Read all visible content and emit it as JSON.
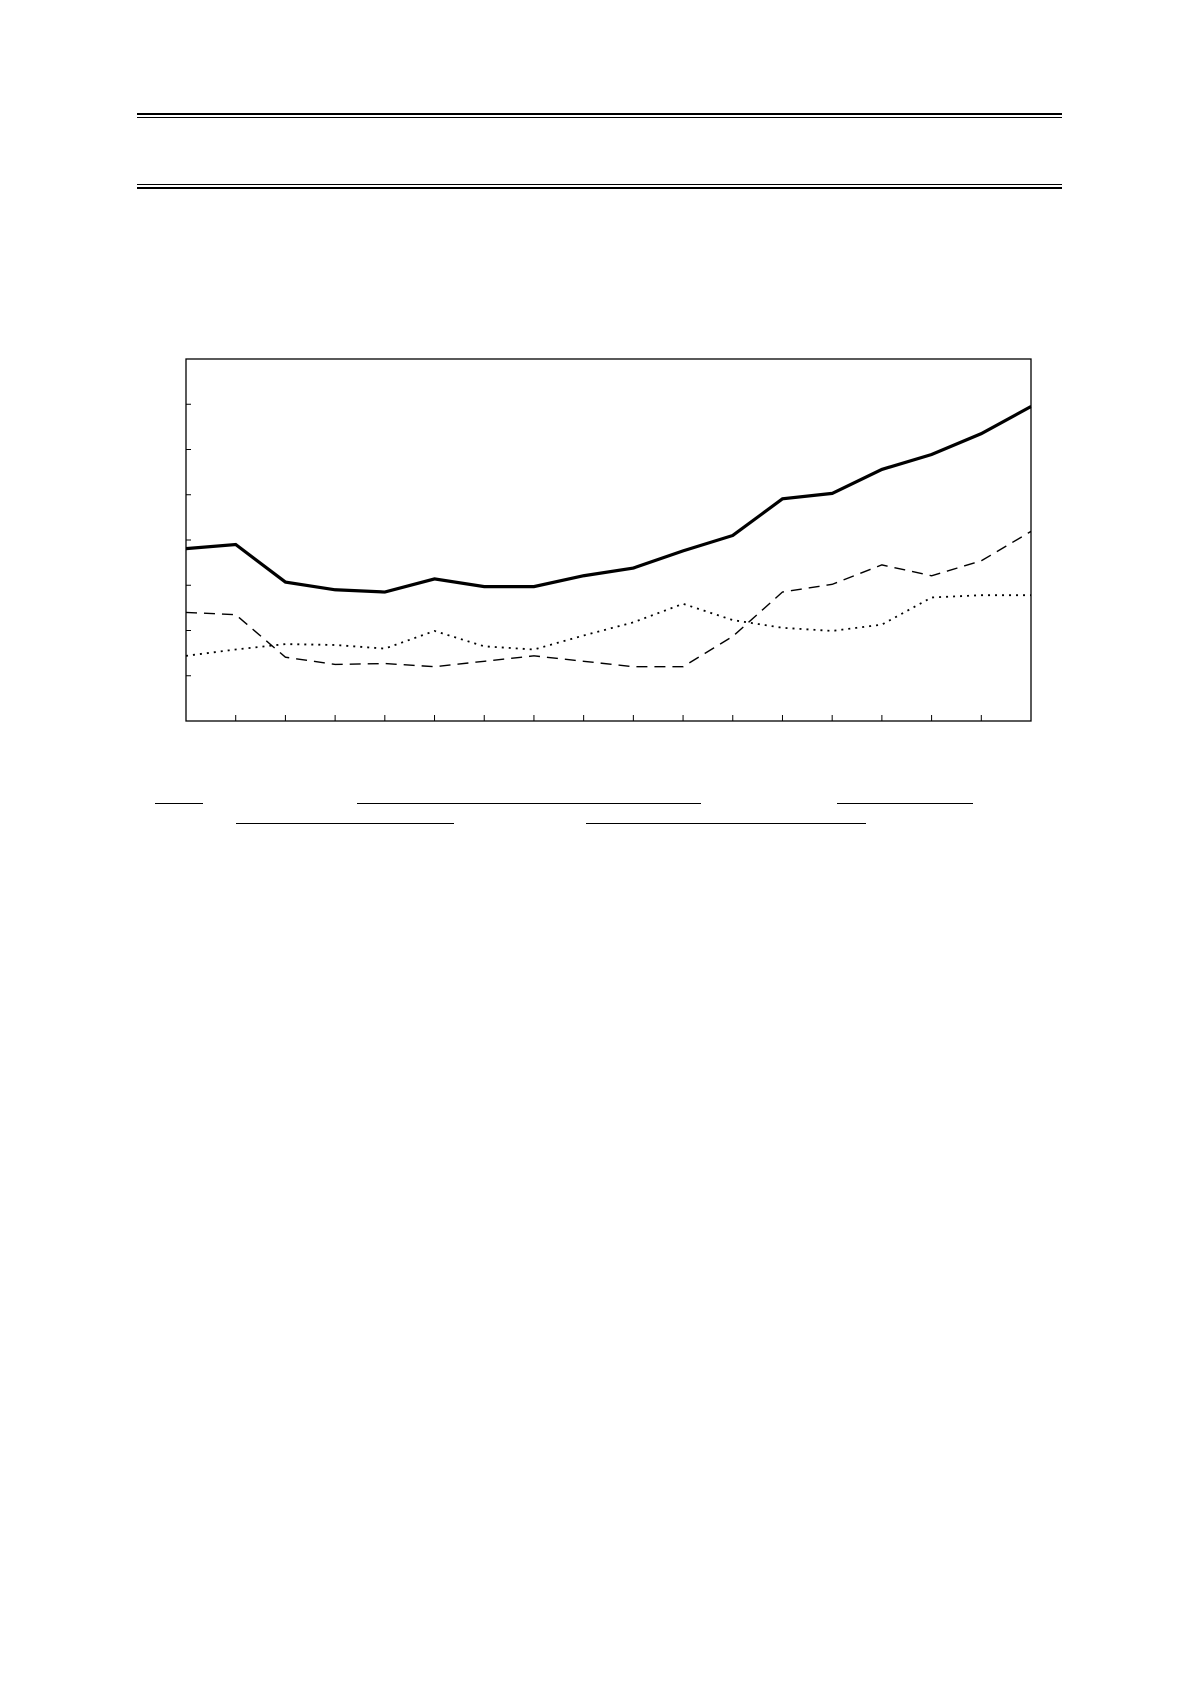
{
  "chart_data": {
    "type": "line",
    "title": "",
    "xlabel": "",
    "ylabel": "",
    "x": [
      1,
      2,
      3,
      4,
      5,
      6,
      7,
      8,
      9,
      10,
      11,
      12,
      13,
      14,
      15,
      16,
      17,
      18
    ],
    "ylim": [
      0,
      8
    ],
    "grid": false,
    "series": [
      {
        "style": "solid-thick",
        "color": "#000000",
        "values": [
          3.81,
          3.9,
          3.07,
          2.9,
          2.85,
          3.14,
          2.97,
          2.97,
          3.21,
          3.38,
          3.76,
          4.1,
          4.91,
          5.03,
          5.56,
          5.89,
          6.35,
          6.95
        ]
      },
      {
        "style": "dashed",
        "color": "#000000",
        "values": [
          2.4,
          2.35,
          1.41,
          1.25,
          1.27,
          1.2,
          1.32,
          1.44,
          1.32,
          1.2,
          1.2,
          1.87,
          2.85,
          3.02,
          3.45,
          3.21,
          3.54,
          4.19
        ]
      },
      {
        "style": "dotted",
        "color": "#000000",
        "values": [
          1.44,
          1.58,
          1.7,
          1.68,
          1.6,
          1.99,
          1.65,
          1.58,
          1.89,
          2.18,
          2.59,
          2.23,
          2.06,
          1.99,
          2.13,
          2.73,
          2.78,
          2.78
        ]
      }
    ]
  }
}
